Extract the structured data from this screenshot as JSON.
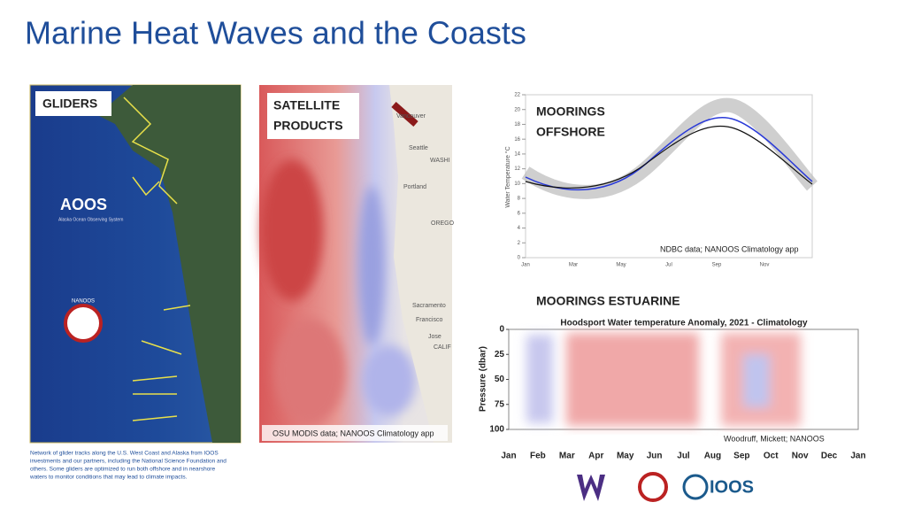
{
  "title": "Marine Heat Waves and the Coasts",
  "gliders": {
    "label": "GLIDERS",
    "logo": "AOOS",
    "logo_sub": "Alaska Ocean Observing System",
    "nanoos": "NANOOS",
    "caption": [
      "Network of glider tracks along the U.S. West Coast and Alaska from IOOS",
      "investments and our partners, including the National Science Foundation and",
      "others. Some gliders are optimized to run both offshore and in nearshore",
      "waters to monitor conditions that may lead to climate impacts."
    ]
  },
  "satellite": {
    "label": [
      "SATELLITE",
      "PRODUCTS"
    ],
    "credit": "OSU MODIS data; NANOOS Climatology app",
    "places": [
      "Vancouver",
      "Seattle",
      "WASHI",
      "Portland",
      "OREGO",
      "Sacramento",
      "Francisco",
      "Jose",
      "CALIF"
    ]
  },
  "offshore": {
    "label": [
      "MOORINGS",
      "OFFSHORE"
    ],
    "credit": "NDBC data; NANOOS Climatology app",
    "y_label": "Water Temperature °C",
    "yticks": [
      0,
      2,
      4,
      6,
      8,
      10,
      12,
      14,
      16,
      18,
      20,
      22
    ],
    "months": [
      "Jan",
      "Mar",
      "May",
      "Jul",
      "Sep",
      "Nov"
    ]
  },
  "estuarine": {
    "label": "MOORINGS ESTUARINE",
    "chart_title": "Hoodsport Water temperature Anomaly, 2021 - Climatology",
    "y_label": "Pressure (dbar)",
    "yticks": [
      0,
      25,
      50,
      75,
      100
    ],
    "months": [
      "Jan",
      "Feb",
      "Mar",
      "Apr",
      "May",
      "Jun",
      "Jul",
      "Aug",
      "Sep",
      "Oct",
      "Nov",
      "Dec",
      "Jan"
    ],
    "credit": "Woodruff, Mickett; NANOOS"
  },
  "logos": {
    "ioos": "IOOS"
  }
}
